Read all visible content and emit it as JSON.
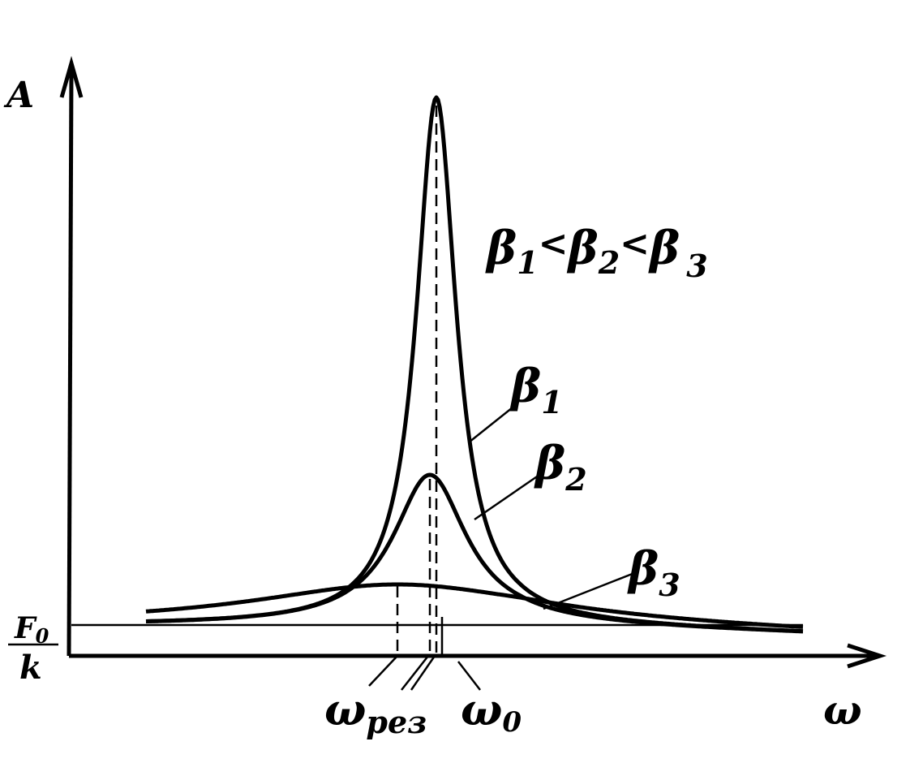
{
  "axes": {
    "y_label": "A",
    "x_label": "ω"
  },
  "origin_label": {
    "numerator": "F",
    "numerator_sub": "0",
    "denominator": "k"
  },
  "relation": {
    "terms": [
      {
        "symbol": "β",
        "sub": "1"
      },
      {
        "symbol": "β",
        "sub": "2"
      },
      {
        "symbol": "β",
        "sub": "3"
      }
    ],
    "signs": [
      "<",
      "<"
    ]
  },
  "curves": [
    {
      "symbol": "β",
      "sub": "1"
    },
    {
      "symbol": "β",
      "sub": "2"
    },
    {
      "symbol": "β",
      "sub": "3"
    }
  ],
  "frequencies": [
    {
      "symbol": "ω",
      "sub": "рез"
    },
    {
      "symbol": "ω",
      "sub": "0"
    }
  ]
}
